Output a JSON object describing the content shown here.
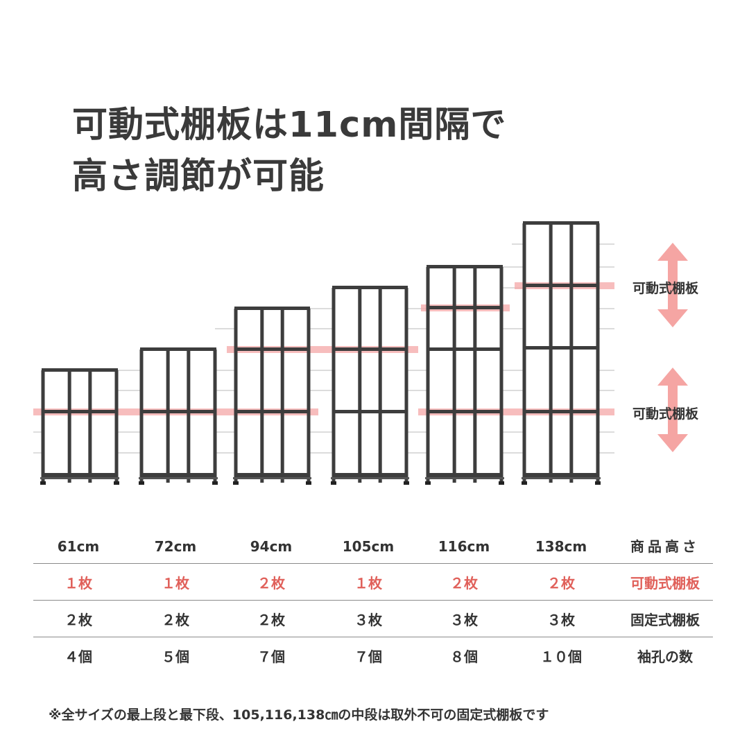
{
  "title": {
    "line1": "可動式棚板は11cm間隔で",
    "line2": "高さ調節が可能"
  },
  "side_labels": {
    "upper": "可動式棚板",
    "lower": "可動式棚板"
  },
  "colors": {
    "frame": "#3d3d3d",
    "highlight": "#f4a7a7",
    "arrow": "#f5a5a3",
    "accent_text": "#e0605a",
    "guide_line": "#c8c8c8"
  },
  "table": {
    "heights": [
      "61cm",
      "72cm",
      "94cm",
      "105cm",
      "116cm",
      "138cm"
    ],
    "heights_label": "商品高さ",
    "movable": [
      "１枚",
      "１枚",
      "２枚",
      "１枚",
      "２枚",
      "２枚"
    ],
    "movable_label": "可動式棚板",
    "fixed": [
      "２枚",
      "２枚",
      "２枚",
      "３枚",
      "３枚",
      "３枚"
    ],
    "fixed_label": "固定式棚板",
    "holes": [
      "４個",
      "５個",
      "７個",
      "７個",
      "８個",
      "１０個"
    ],
    "holes_label": "袖孔の数"
  },
  "footnote": "※全サイズの最上段と最下段、105,116,138㎝の中段は取外不可の固定式棚板です"
}
